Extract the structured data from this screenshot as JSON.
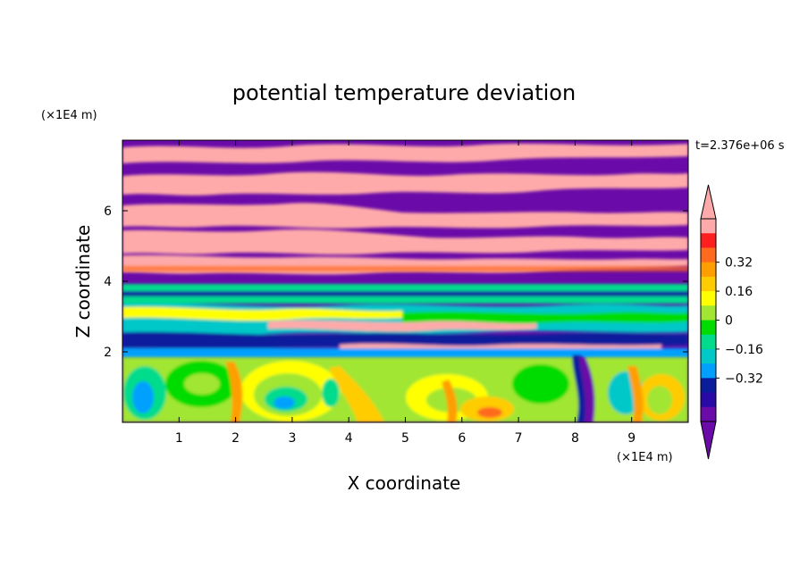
{
  "chart_data": {
    "type": "heatmap",
    "title": "potential temperature deviation",
    "xlabel": "X coordinate",
    "ylabel": "Z coordinate",
    "x_unit": "(×1E4 m)",
    "y_unit": "(×1E4 m)",
    "time_label": "t=2.376e+06 s",
    "xlim": [
      0,
      10
    ],
    "ylim": [
      0,
      8
    ],
    "x_ticks": [
      "1",
      "2",
      "3",
      "4",
      "5",
      "6",
      "7",
      "8",
      "9"
    ],
    "y_ticks": [
      "2",
      "4",
      "6"
    ],
    "colorbar": {
      "levels": [
        -0.48,
        -0.4,
        -0.32,
        -0.24,
        -0.16,
        -0.08,
        0,
        0.08,
        0.16,
        0.24,
        0.32,
        0.4,
        0.48
      ],
      "tick_labels": [
        "0.32",
        "0.16",
        "0",
        "−0.16",
        "−0.32"
      ],
      "tick_values": [
        0.32,
        0.16,
        0,
        -0.16,
        -0.32
      ],
      "colors": [
        "#ffaaaa",
        "#ff1e1e",
        "#ff6a1e",
        "#ff9e00",
        "#ffcc00",
        "#ffff00",
        "#a0e632",
        "#00dc00",
        "#00dc8c",
        "#00c8c8",
        "#00a0ff",
        "#0a1e9c",
        "#2a0aa6",
        "#6a0aa8"
      ],
      "over_color": "#ffaaaa",
      "under_color": "#6a0aa8"
    }
  }
}
